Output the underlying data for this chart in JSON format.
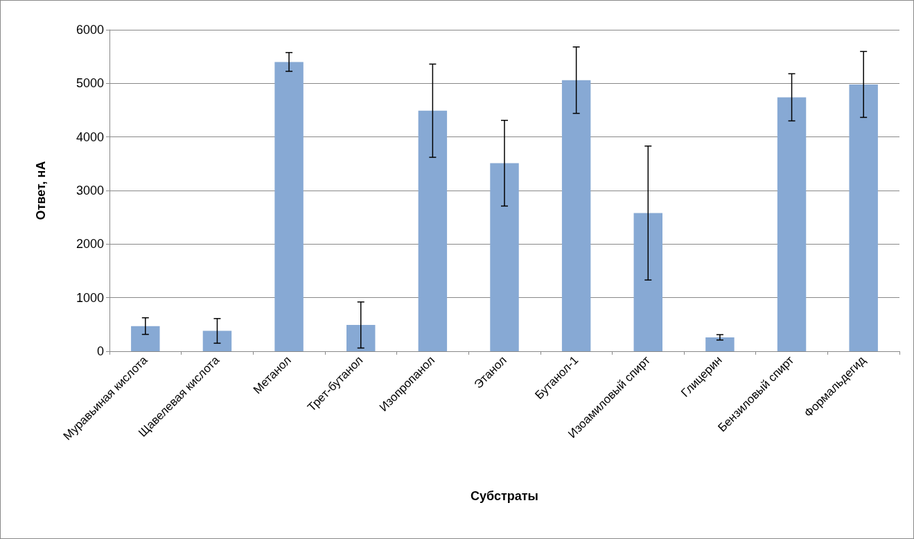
{
  "chart_data": {
    "type": "bar",
    "xlabel": "Субстраты",
    "ylabel": "Ответ, нА",
    "categories": [
      "Муравьиная кислота",
      "Щавелевая кислота",
      "Метанол",
      "Трет-бутанол",
      "Изопропанол",
      "Этанол",
      "Бутанол-1",
      "Изоамиловый спирт",
      "Глицерин",
      "Бензиловый спирт",
      "Формальдегид"
    ],
    "values": [
      470,
      380,
      5400,
      490,
      4490,
      3510,
      5060,
      2580,
      260,
      4740,
      4980
    ],
    "errors": [
      155,
      230,
      175,
      430,
      870,
      800,
      620,
      1250,
      50,
      440,
      615
    ],
    "color": "#87a9d4",
    "ylim": [
      0,
      6000
    ],
    "yticks": [
      0,
      1000,
      2000,
      3000,
      4000,
      5000,
      6000
    ],
    "grid": "y"
  }
}
